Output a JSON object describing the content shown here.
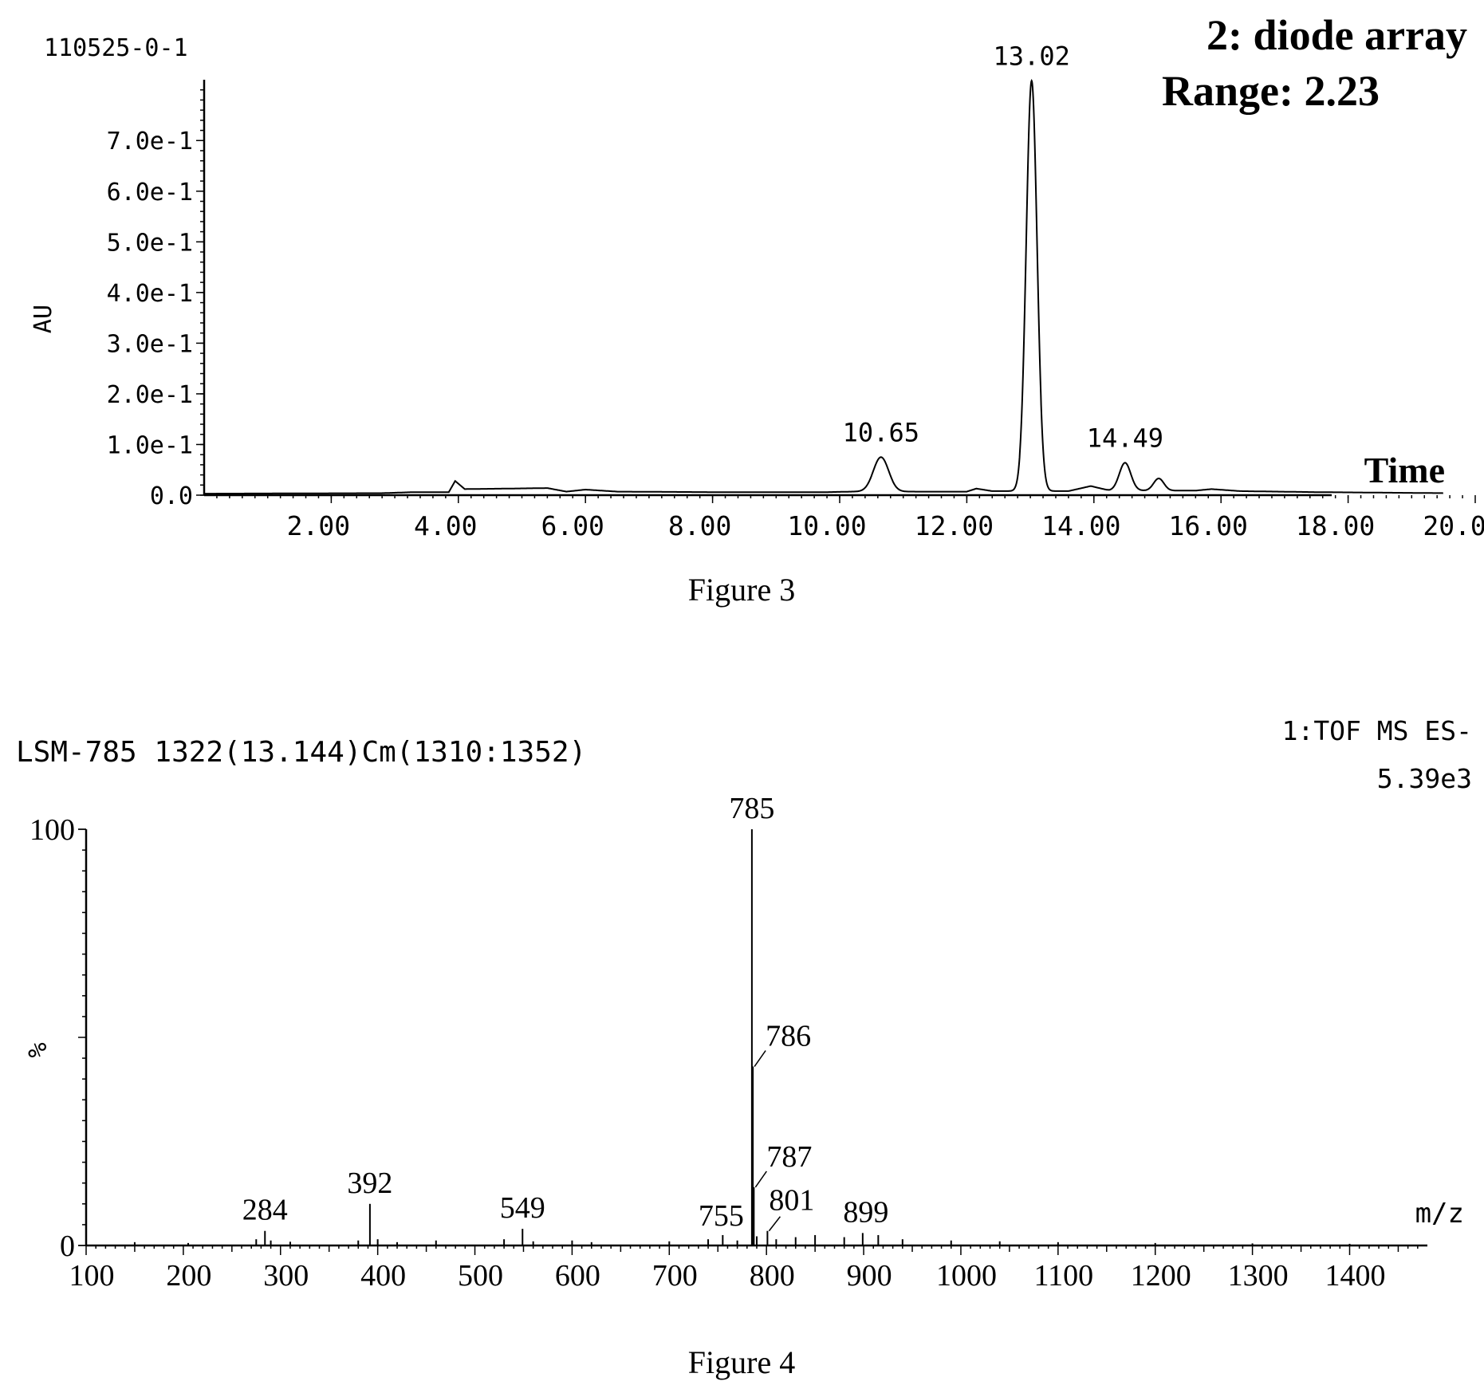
{
  "chart_data": [
    {
      "type": "line",
      "sample_id": "110525-0-1",
      "detector": "2: diode array",
      "range_label": "Range: 2.23",
      "xlabel": "Time",
      "ylabel": "AU",
      "caption": "Figure 3",
      "xlim": [
        0,
        20
      ],
      "ylim": [
        0,
        0.82
      ],
      "x_ticks": [
        2,
        4,
        6,
        8,
        10,
        12,
        14,
        16,
        18,
        20
      ],
      "x_tick_labels": [
        "2.00",
        "4.00",
        "6.00",
        "8.00",
        "10.00",
        "12.00",
        "14.00",
        "16.00",
        "18.00",
        "20.00"
      ],
      "y_ticks": [
        0,
        0.1,
        0.2,
        0.3,
        0.4,
        0.5,
        0.6,
        0.7
      ],
      "y_tick_labels": [
        "0.0",
        "1.0e-1",
        "2.0e-1",
        "3.0e-1",
        "4.0e-1",
        "5.0e-1",
        "6.0e-1",
        "7.0e-1"
      ],
      "baseline": [
        [
          0.0,
          0.003
        ],
        [
          2.8,
          0.004
        ],
        [
          3.3,
          0.006
        ],
        [
          3.85,
          0.006
        ],
        [
          3.95,
          0.028
        ],
        [
          4.1,
          0.012
        ],
        [
          4.8,
          0.013
        ],
        [
          5.4,
          0.014
        ],
        [
          5.7,
          0.007
        ],
        [
          6.0,
          0.011
        ],
        [
          6.5,
          0.007
        ],
        [
          8.0,
          0.006
        ],
        [
          9.8,
          0.006
        ],
        [
          10.2,
          0.007
        ],
        [
          12.0,
          0.007
        ],
        [
          12.15,
          0.013
        ],
        [
          12.4,
          0.008
        ],
        [
          13.6,
          0.008
        ],
        [
          13.95,
          0.018
        ],
        [
          14.25,
          0.009
        ],
        [
          15.6,
          0.009
        ],
        [
          15.85,
          0.012
        ],
        [
          16.3,
          0.008
        ],
        [
          17.5,
          0.006
        ],
        [
          18.5,
          0.005
        ],
        [
          19.5,
          0.004
        ]
      ],
      "peaks": [
        {
          "x": 10.65,
          "height": 0.068,
          "width": 0.12,
          "label": "10.65"
        },
        {
          "x": 13.02,
          "height": 0.81,
          "width": 0.085,
          "label": "13.02"
        },
        {
          "x": 14.49,
          "height": 0.055,
          "width": 0.09,
          "label": "14.49"
        },
        {
          "x": 15.02,
          "height": 0.024,
          "width": 0.08,
          "label": ""
        }
      ]
    },
    {
      "type": "bar",
      "title": "LSM-785 1322(13.144)Cm(1310:1352)",
      "mode": "1:TOF MS ES-",
      "intensity": "5.39e3",
      "xlabel": "m/z",
      "ylabel": "%",
      "caption": "Figure 4",
      "xlim": [
        100,
        1480
      ],
      "ylim": [
        0,
        100
      ],
      "x_ticks": [
        100,
        200,
        300,
        400,
        500,
        600,
        700,
        800,
        900,
        1000,
        1100,
        1200,
        1300,
        1400
      ],
      "x_tick_labels": [
        "100",
        "200",
        "300",
        "400",
        "500",
        "600",
        "700",
        "800",
        "900",
        "1000",
        "1100",
        "1200",
        "1300",
        "1400"
      ],
      "y_ticks": [
        0,
        100
      ],
      "y_tick_labels": [
        "0",
        "100"
      ],
      "peaks": [
        {
          "mz": 284,
          "intensity": 3.5,
          "label": "284"
        },
        {
          "mz": 392,
          "intensity": 10,
          "label": "392"
        },
        {
          "mz": 549,
          "intensity": 4,
          "label": "549"
        },
        {
          "mz": 755,
          "intensity": 2.5,
          "label": "755"
        },
        {
          "mz": 785,
          "intensity": 100,
          "label": "785"
        },
        {
          "mz": 786,
          "intensity": 43,
          "label": "786"
        },
        {
          "mz": 787,
          "intensity": 14,
          "label": "787"
        },
        {
          "mz": 801,
          "intensity": 3.5,
          "label": "801"
        },
        {
          "mz": 899,
          "intensity": 3,
          "label": "899"
        }
      ],
      "minor_peaks": [
        [
          150,
          0.8
        ],
        [
          205,
          0.6
        ],
        [
          275,
          1.5
        ],
        [
          290,
          1.2
        ],
        [
          310,
          0.9
        ],
        [
          380,
          1.2
        ],
        [
          400,
          1.5
        ],
        [
          420,
          0.8
        ],
        [
          460,
          1.2
        ],
        [
          530,
          1.5
        ],
        [
          560,
          1.0
        ],
        [
          600,
          1.2
        ],
        [
          620,
          0.8
        ],
        [
          700,
          1.0
        ],
        [
          740,
          1.5
        ],
        [
          770,
          1.2
        ],
        [
          790,
          2.2
        ],
        [
          810,
          1.5
        ],
        [
          830,
          2.0
        ],
        [
          850,
          2.5
        ],
        [
          880,
          2.0
        ],
        [
          915,
          2.5
        ],
        [
          940,
          1.5
        ],
        [
          990,
          1.2
        ],
        [
          1040,
          1.0
        ],
        [
          1100,
          0.8
        ],
        [
          1200,
          0.6
        ],
        [
          1300,
          0.5
        ],
        [
          1400,
          0.4
        ]
      ]
    }
  ]
}
